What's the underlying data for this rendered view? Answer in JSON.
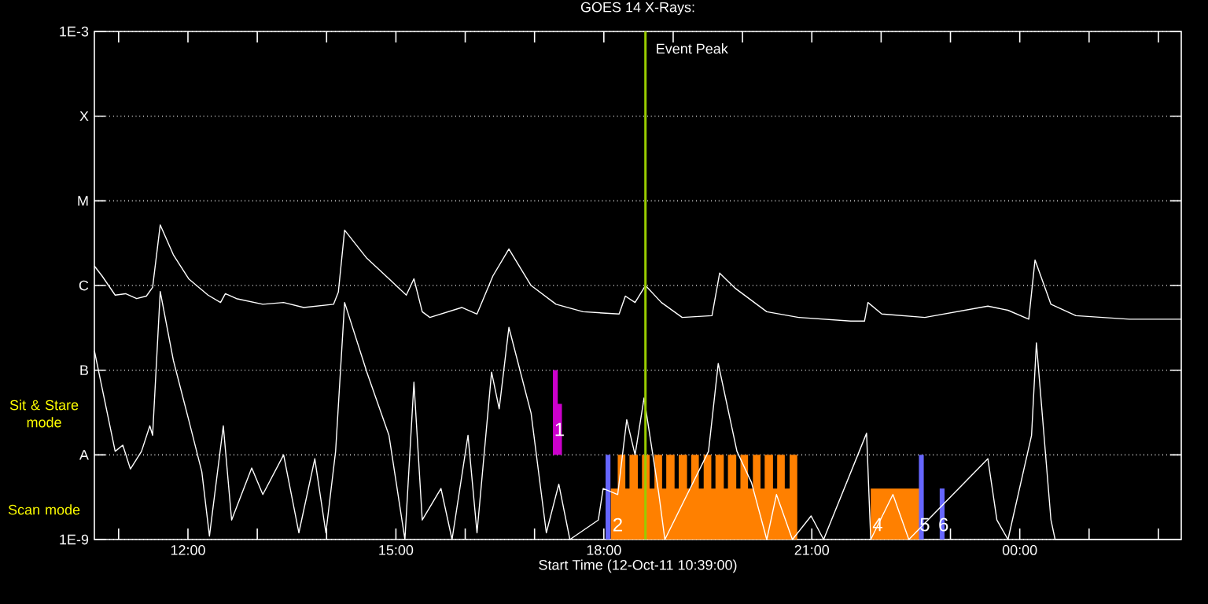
{
  "chart_data": {
    "type": "line",
    "title": "GOES 14 X-Rays:",
    "xlabel": "Start Time (12-Oct-11 10:39:00)",
    "xlim": [
      10.65,
      26.33
    ],
    "xticks": [
      {
        "value": 11,
        "label": null
      },
      {
        "value": 12,
        "label": "12:00"
      },
      {
        "value": 13,
        "label": null
      },
      {
        "value": 14,
        "label": null
      },
      {
        "value": 15,
        "label": "15:00"
      },
      {
        "value": 16,
        "label": null
      },
      {
        "value": 17,
        "label": null
      },
      {
        "value": 18,
        "label": "18:00"
      },
      {
        "value": 19,
        "label": null
      },
      {
        "value": 20,
        "label": null
      },
      {
        "value": 21,
        "label": "21:00"
      },
      {
        "value": 22,
        "label": null
      },
      {
        "value": 23,
        "label": null
      },
      {
        "value": 24,
        "label": "00:00"
      },
      {
        "value": 25,
        "label": null
      },
      {
        "value": 26,
        "label": null
      }
    ],
    "ylim": [
      1e-09,
      0.001
    ],
    "log": "y",
    "yticks": [
      {
        "value": 1e-09,
        "label": "1E-9"
      },
      {
        "value": 1e-08,
        "label": "A"
      },
      {
        "value": 1e-07,
        "label": "B"
      },
      {
        "value": 1e-06,
        "label": "C"
      },
      {
        "value": 1e-05,
        "label": "M"
      },
      {
        "value": 0.0001,
        "label": "X"
      },
      {
        "value": 0.001,
        "label": "1E-3"
      }
    ],
    "grid": "y",
    "series": [
      {
        "color": "#ffffff",
        "x": [
          10.65,
          10.76,
          10.95,
          11.1,
          11.26,
          11.4,
          11.49,
          11.6,
          11.79,
          12.01,
          12.29,
          12.47,
          12.54,
          12.7,
          13.08,
          13.38,
          13.67,
          14.1,
          14.17,
          14.26,
          14.58,
          14.9,
          15.15,
          15.26,
          15.38,
          15.49,
          15.95,
          16.17,
          16.4,
          16.63,
          16.95,
          17.31,
          17.7,
          18.22,
          18.31,
          18.45,
          18.6,
          18.83,
          19.13,
          19.56,
          19.67,
          19.9,
          20.35,
          20.81,
          21.56,
          21.76,
          21.81,
          22.01,
          22.63,
          23.54,
          23.83,
          24.13,
          24.22,
          24.45,
          24.81,
          25.58,
          26.33
        ],
        "values": [
          1.7e-06,
          1.3e-06,
          7.7e-07,
          8e-07,
          7e-07,
          7.5e-07,
          9.5e-07,
          5.2e-06,
          2.3e-06,
          1.2e-06,
          7.7e-07,
          6.3e-07,
          8e-07,
          7e-07,
          6e-07,
          6.3e-07,
          5.5e-07,
          6e-07,
          8.4e-07,
          4.5e-06,
          2.1e-06,
          1.2e-06,
          7.7e-07,
          1.2e-06,
          4.9e-07,
          4.2e-07,
          5.5e-07,
          4.6e-07,
          1.3e-06,
          2.7e-06,
          1e-06,
          6e-07,
          4.9e-07,
          4.6e-07,
          7.5e-07,
          6.3e-07,
          1e-06,
          6.3e-07,
          4.2e-07,
          4.4e-07,
          1.4e-06,
          9.2e-07,
          4.9e-07,
          4.2e-07,
          3.8e-07,
          3.8e-07,
          6.3e-07,
          4.6e-07,
          4.2e-07,
          5.7e-07,
          5.1e-07,
          4e-07,
          2e-06,
          6e-07,
          4.4e-07,
          4e-07,
          4e-07
        ]
      },
      {
        "color": "#ffffff",
        "x": [
          10.65,
          10.95,
          11.06,
          11.17,
          11.33,
          11.45,
          11.49,
          11.6,
          11.79,
          12.01,
          12.2,
          12.31,
          12.51,
          12.63,
          12.92,
          13.08,
          13.38,
          13.6,
          13.83,
          13.99,
          14.13,
          14.26,
          14.58,
          14.9,
          15.13,
          15.26,
          15.38,
          15.65,
          15.81,
          16.04,
          16.17,
          16.38,
          16.49,
          16.63,
          16.95,
          17.17,
          17.35,
          17.51,
          17.92,
          17.99,
          18.2,
          18.33,
          18.45,
          18.58,
          18.79,
          18.88,
          19.51,
          19.65,
          19.92,
          20.13,
          20.35,
          20.49,
          20.72,
          20.99,
          21.17,
          21.79,
          21.85,
          22.17,
          22.4,
          23.54,
          23.67,
          23.83,
          24.17,
          24.24,
          24.45,
          24.51,
          25.72,
          26.33
        ],
        "values": [
          1.7e-07,
          1.1e-08,
          1.3e-08,
          6.8e-09,
          1.1e-08,
          2.2e-08,
          1.7e-08,
          8.5e-07,
          1.3e-07,
          2.6e-08,
          6.3e-09,
          1.1e-09,
          2.2e-08,
          1.7e-09,
          7e-09,
          3.4e-09,
          1e-08,
          1.2e-09,
          9e-09,
          1.2e-09,
          1.1e-08,
          6.3e-07,
          9.5e-08,
          1.7e-08,
          1e-09,
          7.2e-08,
          1.7e-09,
          4e-09,
          1e-09,
          1.7e-08,
          1.2e-09,
          9.5e-08,
          3.5e-08,
          3.2e-07,
          3.1e-08,
          1.2e-09,
          4.5e-09,
          1e-09,
          1.7e-09,
          4e-09,
          3.4e-09,
          2.6e-08,
          1e-08,
          4.7e-08,
          3.6e-09,
          1e-09,
          1.1e-08,
          1.2e-07,
          1.1e-08,
          4.7e-09,
          1e-09,
          3.4e-09,
          1e-09,
          1.9e-09,
          1e-09,
          1.8e-08,
          1e-09,
          3.4e-09,
          1e-09,
          9e-09,
          1.7e-09,
          1e-09,
          1.7e-08,
          2.1e-07,
          1.7e-09,
          1e-09,
          1e-09,
          1e-09
        ]
      },
      {
        "type": "area",
        "color": "#ff8000",
        "x": [
          18.1,
          18.1,
          18.2,
          18.2,
          18.31,
          18.31,
          18.37,
          18.37,
          18.49,
          18.49,
          18.55,
          18.55,
          18.66,
          18.66,
          18.73,
          18.73,
          18.84,
          18.84,
          18.9,
          18.9,
          19.02,
          19.02,
          19.08,
          19.08,
          19.2,
          19.2,
          19.26,
          19.26,
          19.37,
          19.37,
          19.44,
          19.44,
          19.55,
          19.55,
          19.61,
          19.61,
          19.73,
          19.73,
          19.79,
          19.79,
          19.91,
          19.91,
          19.97,
          19.97,
          20.08,
          20.08,
          20.15,
          20.15,
          20.26,
          20.26,
          20.32,
          20.32,
          20.44,
          20.44,
          20.5,
          20.5,
          20.61,
          20.61,
          20.68,
          20.68,
          20.79,
          20.79
        ],
        "values": [
          1e-09,
          4e-09,
          4e-09,
          1e-08,
          1e-08,
          4e-09,
          4e-09,
          1e-08,
          1e-08,
          4e-09,
          4e-09,
          1e-08,
          1e-08,
          4e-09,
          4e-09,
          1e-08,
          1e-08,
          4e-09,
          4e-09,
          1e-08,
          1e-08,
          4e-09,
          4e-09,
          1e-08,
          1e-08,
          4e-09,
          4e-09,
          1e-08,
          1e-08,
          4e-09,
          4e-09,
          1e-08,
          1e-08,
          4e-09,
          4e-09,
          1e-08,
          1e-08,
          4e-09,
          4e-09,
          1e-08,
          1e-08,
          4e-09,
          4e-09,
          1e-08,
          1e-08,
          4e-09,
          4e-09,
          1e-08,
          1e-08,
          4e-09,
          4e-09,
          1e-08,
          1e-08,
          4e-09,
          4e-09,
          1e-08,
          1e-08,
          4e-09,
          4e-09,
          1e-08,
          1e-08,
          1e-09
        ]
      },
      {
        "type": "area",
        "color": "#ff8000",
        "x": [
          21.85,
          21.85,
          22.56,
          22.56
        ],
        "values": [
          1e-09,
          4e-09,
          4e-09,
          1e-09
        ]
      },
      {
        "type": "bar",
        "x": [
          17.3,
          17.36,
          18.06,
          22.58,
          22.88
        ],
        "base": [
          1e-08,
          1e-08,
          1e-09,
          1e-09,
          1e-09
        ],
        "values": [
          9e-08,
          3e-08,
          9e-09,
          9e-09,
          3e-09
        ],
        "colors": [
          "#cc00cc",
          "#cc00cc",
          "#6666ff",
          "#6666ff",
          "#6666ff"
        ]
      }
    ],
    "ref_lines": [
      {
        "axis": "x",
        "value": 18.6,
        "label": "Event Peak",
        "color": "#99cc00"
      }
    ],
    "annotations": [
      {
        "text": "1",
        "x": 17.36,
        "y": 2e-08
      },
      {
        "text": "2",
        "x": 18.2,
        "y": 1.5e-09
      },
      {
        "text": "4",
        "x": 21.95,
        "y": 1.5e-09
      },
      {
        "text": "5",
        "x": 22.63,
        "y": 1.5e-09
      },
      {
        "text": "6",
        "x": 22.9,
        "y": 1.5e-09
      },
      "Sit & Stare mode",
      "Scan mode"
    ]
  }
}
